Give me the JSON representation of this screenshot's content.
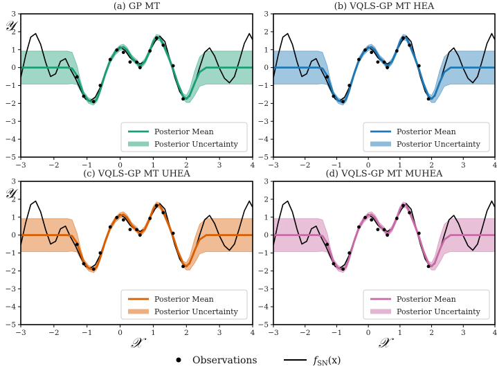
{
  "chart_data": [
    {
      "type": "line",
      "title": "(a) GP MT",
      "color": "#1b9e77",
      "xlabel": "",
      "ylabel": "𝒴",
      "xlim": [
        -3,
        4
      ],
      "ylim": [
        -5,
        3
      ],
      "x_ticks": [
        "−3",
        "−2",
        "−1",
        "0",
        "1",
        "2",
        "3",
        "4"
      ],
      "y_ticks": [
        "3",
        "2",
        "1",
        "0",
        "−1",
        "−2",
        "−3",
        "−4",
        "−5"
      ],
      "legend": [
        "Posterior Mean",
        "Posterior Uncertainty"
      ],
      "legend_position": "lower-right"
    },
    {
      "type": "line",
      "title": "(b) VQLS-GP MT HEA",
      "color": "#1f78b4",
      "xlabel": "",
      "ylabel": "",
      "xlim": [
        -3,
        4
      ],
      "ylim": [
        -5,
        3
      ],
      "x_ticks": [
        "−3",
        "−2",
        "−1",
        "0",
        "1",
        "2",
        "3",
        "4"
      ],
      "y_ticks": [
        "3",
        "2",
        "1",
        "0",
        "−1",
        "−2",
        "−3",
        "−4",
        "−5"
      ],
      "legend": [
        "Posterior Mean",
        "Posterior Uncertainty"
      ],
      "legend_position": "lower-right"
    },
    {
      "type": "line",
      "title": "(c) VQLS-GP MT UHEA",
      "color": "#d95f02",
      "xlabel": "𝒳",
      "ylabel": "𝒴",
      "xlim": [
        -3,
        4
      ],
      "ylim": [
        -5,
        3
      ],
      "x_ticks": [
        "−3",
        "−2",
        "−1",
        "0",
        "1",
        "2",
        "3",
        "4"
      ],
      "y_ticks": [
        "3",
        "2",
        "1",
        "0",
        "−1",
        "−2",
        "−3",
        "−4",
        "−5"
      ],
      "legend": [
        "Posterior Mean",
        "Posterior Uncertainty"
      ],
      "legend_position": "lower-right"
    },
    {
      "type": "line",
      "title": "(d) VQLS-GP MT MUHEA",
      "color": "#c76ba5",
      "xlabel": "𝒳",
      "ylabel": "",
      "xlim": [
        -3,
        4
      ],
      "ylim": [
        -5,
        3
      ],
      "x_ticks": [
        "−3",
        "−2",
        "−1",
        "0",
        "1",
        "2",
        "3",
        "4"
      ],
      "y_ticks": [
        "3",
        "2",
        "1",
        "0",
        "−1",
        "−2",
        "−3",
        "−4",
        "−5"
      ],
      "legend": [
        "Posterior Mean",
        "Posterior Uncertainty"
      ],
      "legend_position": "lower-right"
    }
  ],
  "shared": {
    "observations_x": [
      -1.3,
      -1.1,
      -0.8,
      -0.6,
      -0.3,
      -0.1,
      0.1,
      0.3,
      0.5,
      0.6,
      0.9,
      1.1,
      1.3,
      1.6,
      1.9
    ],
    "observations_y": [
      -0.52,
      -1.6,
      -1.9,
      -1.0,
      0.45,
      0.98,
      0.85,
      0.31,
      0.3,
      0.0,
      0.93,
      1.65,
      1.25,
      0.1,
      -1.75
    ],
    "true_function_x": [
      -3.0,
      -2.85,
      -2.7,
      -2.55,
      -2.4,
      -2.25,
      -2.1,
      -1.95,
      -1.8,
      -1.65,
      -1.5,
      -1.35,
      -1.2,
      -1.05,
      -0.9,
      -0.75,
      -0.6,
      -0.45,
      -0.3,
      -0.15,
      0.0,
      0.15,
      0.3,
      0.45,
      0.6,
      0.75,
      0.9,
      1.05,
      1.2,
      1.35,
      1.5,
      1.65,
      1.8,
      1.95,
      2.1,
      2.25,
      2.4,
      2.55,
      2.7,
      2.85,
      3.0,
      3.15,
      3.3,
      3.45,
      3.6,
      3.75,
      3.9,
      4.0
    ],
    "true_function_y": [
      -0.55,
      0.7,
      1.7,
      1.9,
      1.3,
      0.3,
      -0.5,
      -0.35,
      0.35,
      0.5,
      -0.1,
      -0.6,
      -1.2,
      -1.75,
      -1.85,
      -1.65,
      -1.1,
      -0.3,
      0.4,
      0.9,
      1.15,
      0.95,
      0.55,
      0.35,
      0.2,
      0.35,
      0.95,
      1.45,
      1.75,
      1.45,
      0.45,
      -0.55,
      -1.35,
      -1.75,
      -1.6,
      -0.9,
      0.0,
      0.85,
      1.1,
      0.65,
      -0.05,
      -0.6,
      -0.85,
      -0.5,
      0.4,
      1.35,
      1.9,
      1.55
    ],
    "posterior_mean_x": [
      -3.0,
      -1.6,
      -1.45,
      -1.3,
      -1.2,
      -1.1,
      -0.95,
      -0.8,
      -0.7,
      -0.6,
      -0.45,
      -0.3,
      -0.15,
      0.0,
      0.1,
      0.2,
      0.35,
      0.5,
      0.6,
      0.75,
      0.9,
      1.0,
      1.1,
      1.2,
      1.3,
      1.45,
      1.6,
      1.75,
      1.9,
      2.0,
      2.1,
      2.25,
      2.4,
      2.6,
      4.0
    ],
    "posterior_mean_y": [
      0.0,
      0.0,
      -0.05,
      -0.45,
      -1.0,
      -1.5,
      -1.85,
      -1.95,
      -1.75,
      -1.25,
      -0.35,
      0.4,
      0.85,
      1.1,
      1.15,
      1.0,
      0.55,
      0.3,
      0.05,
      0.35,
      0.95,
      1.45,
      1.7,
      1.65,
      1.3,
      0.65,
      -0.1,
      -0.95,
      -1.6,
      -1.75,
      -1.55,
      -0.85,
      -0.25,
      0.0,
      0.0
    ],
    "uncertainty_upper": [
      0.92,
      0.92,
      0.85,
      0.1,
      -0.7,
      -1.35,
      -1.7,
      -1.8,
      -1.6,
      -1.1,
      -0.2,
      0.55,
      1.0,
      1.25,
      1.3,
      1.15,
      0.7,
      0.45,
      0.2,
      0.5,
      1.1,
      1.6,
      1.85,
      1.8,
      1.45,
      0.8,
      0.05,
      -0.8,
      -1.45,
      -1.55,
      -1.2,
      -0.2,
      0.6,
      0.92,
      0.92
    ],
    "uncertainty_lower": [
      -0.92,
      -0.92,
      -0.9,
      -0.95,
      -1.3,
      -1.65,
      -2.0,
      -2.1,
      -1.9,
      -1.4,
      -0.5,
      0.25,
      0.7,
      0.95,
      1.0,
      0.85,
      0.4,
      0.15,
      -0.1,
      0.2,
      0.8,
      1.3,
      1.55,
      1.5,
      1.15,
      0.5,
      -0.25,
      -1.1,
      -1.75,
      -1.95,
      -1.95,
      -1.55,
      -1.05,
      -0.92,
      -0.92
    ],
    "legend_observations": "Observations",
    "legend_true_fn_main": "f",
    "legend_true_fn_sub": "SN",
    "legend_true_fn_arg": "(x)"
  }
}
